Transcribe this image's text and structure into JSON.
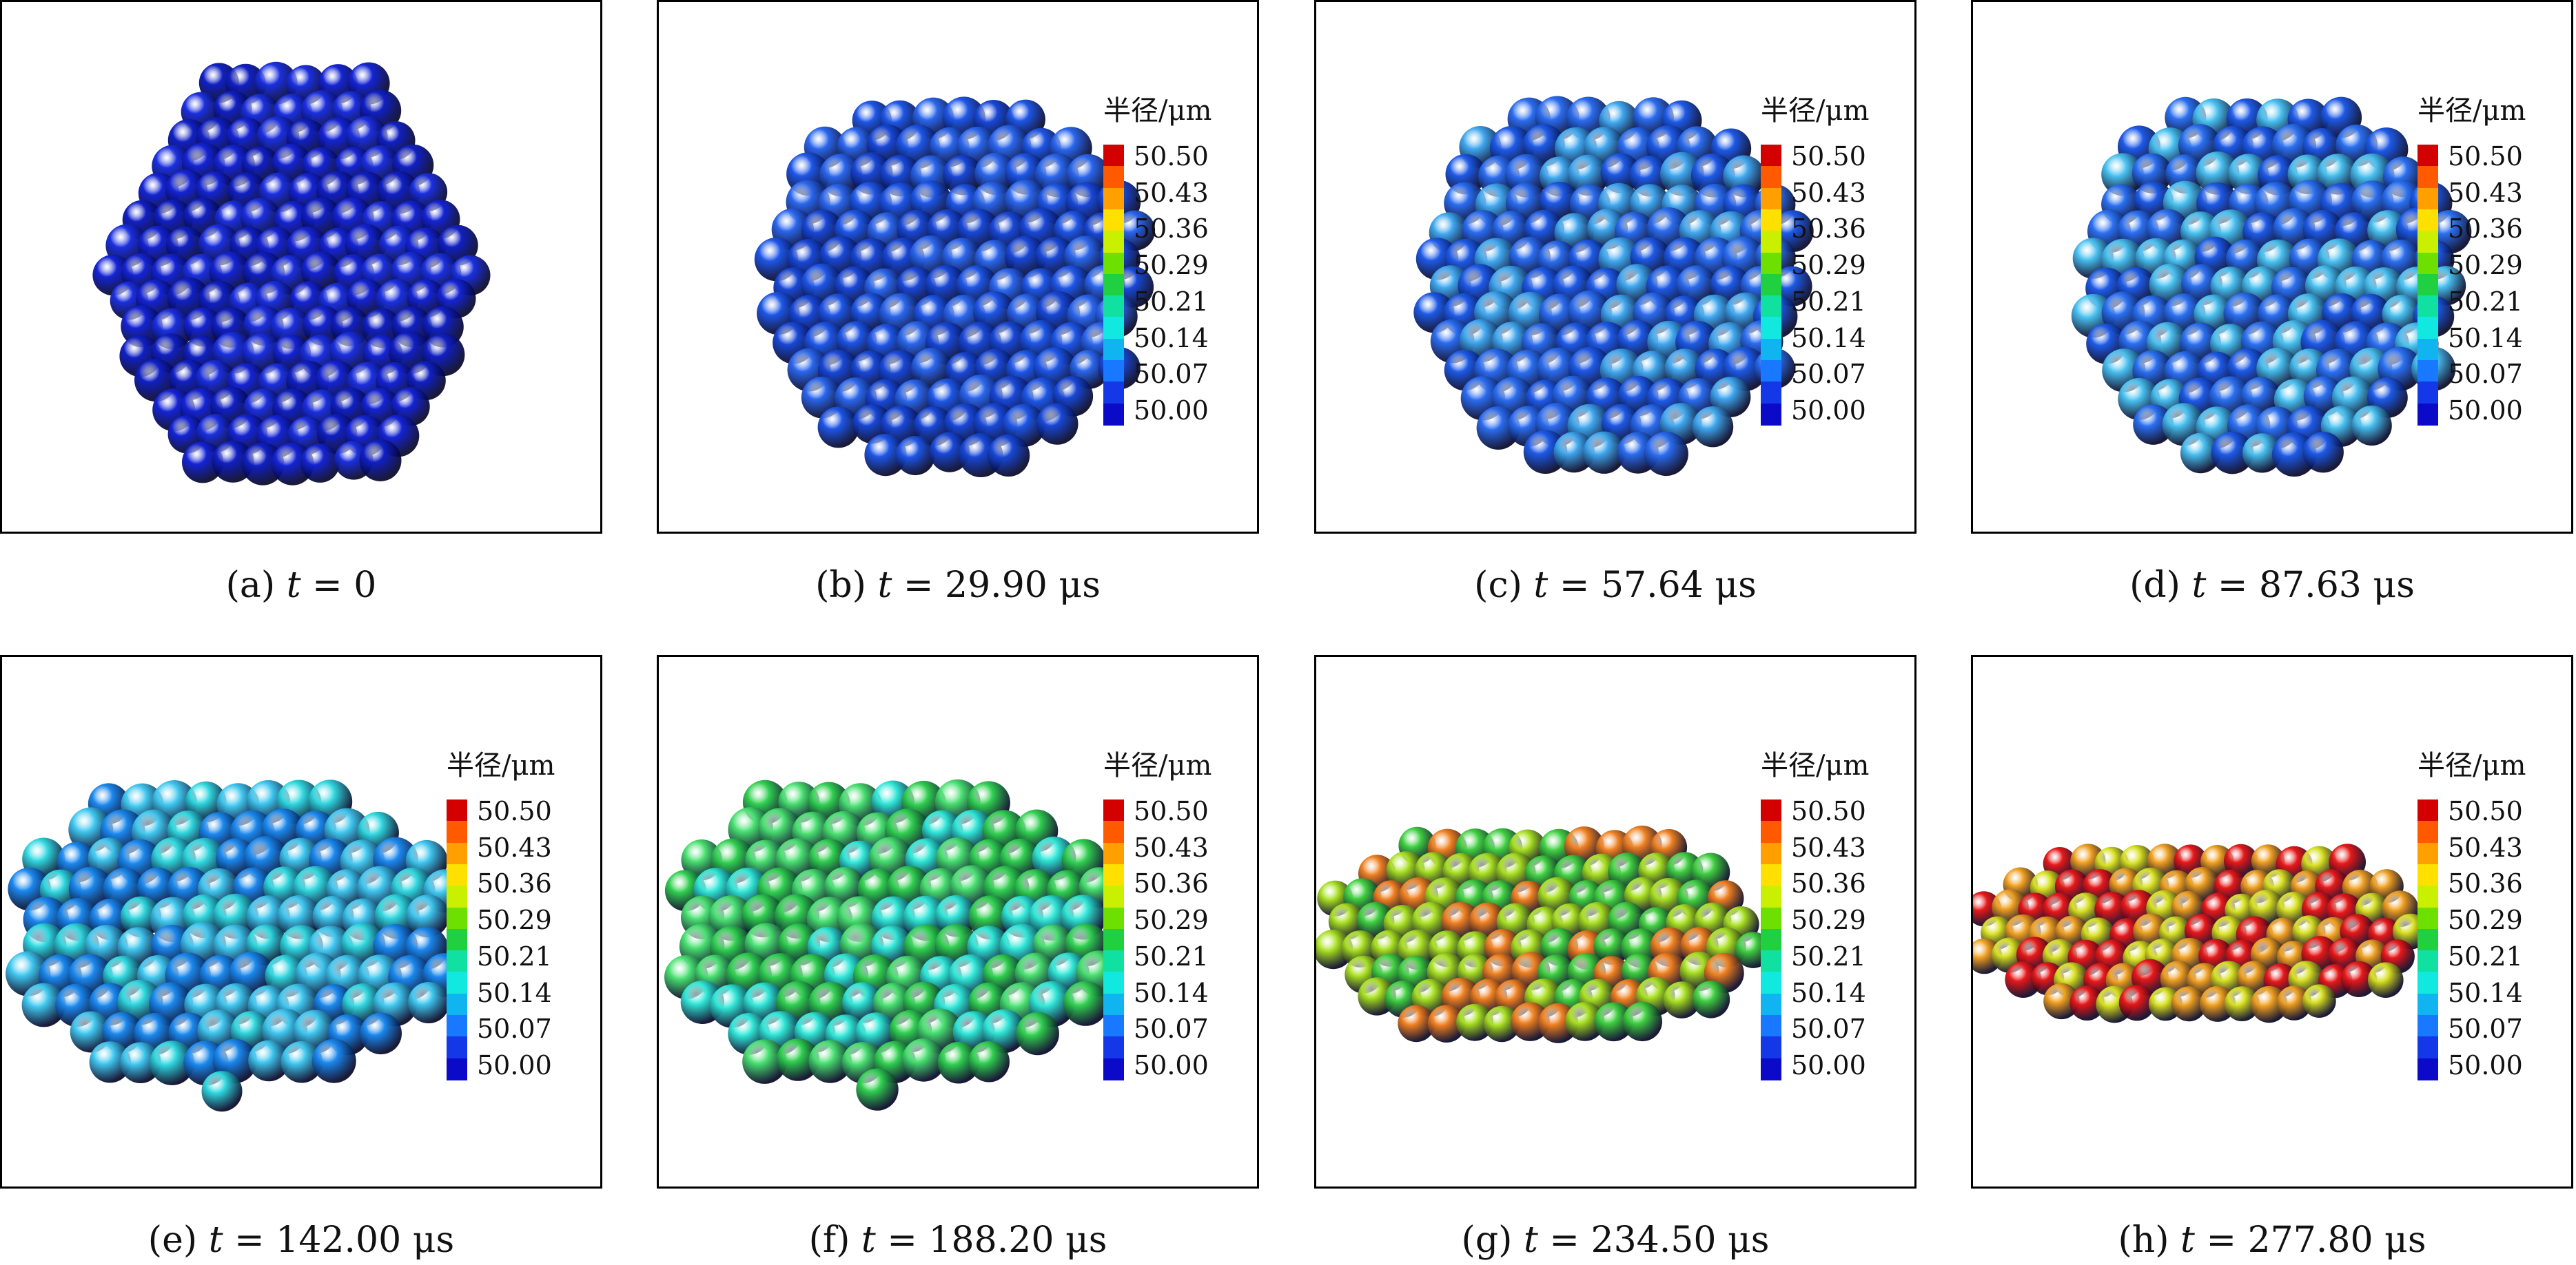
{
  "colorbar": {
    "title": "半径/μm",
    "ticks": [
      "50.50",
      "50.43",
      "50.36",
      "50.29",
      "50.21",
      "50.14",
      "50.07",
      "50.00"
    ],
    "colors": [
      "#d40000",
      "#ff5a00",
      "#ffa000",
      "#ffe000",
      "#c8f000",
      "#6ee000",
      "#20d040",
      "#10e0a0",
      "#10e8e0",
      "#10b4f0",
      "#1878ff",
      "#1438e8",
      "#0a0ac8"
    ]
  },
  "panels": [
    {
      "label": "(a)",
      "var": "t",
      "eq": "=",
      "value": "0",
      "unit": "",
      "show_colorbar": false,
      "cluster": {
        "shape": "hex",
        "colors": [
          "#1424d6",
          "#1a2fe0",
          "#1020c4"
        ]
      }
    },
    {
      "label": "(b)",
      "var": "t",
      "eq": "=",
      "value": "29.90",
      "unit": "μs",
      "show_colorbar": true,
      "cluster": {
        "shape": "round",
        "colors": [
          "#1d56e8",
          "#2a66ee",
          "#1848d8"
        ]
      }
    },
    {
      "label": "(c)",
      "var": "t",
      "eq": "=",
      "value": "57.64",
      "unit": "μs",
      "show_colorbar": true,
      "cluster": {
        "shape": "round",
        "colors": [
          "#1d5ae8",
          "#2a6cf0",
          "#40a8f0"
        ]
      }
    },
    {
      "label": "(d)",
      "var": "t",
      "eq": "=",
      "value": "87.63",
      "unit": "μs",
      "show_colorbar": true,
      "cluster": {
        "shape": "round",
        "colors": [
          "#1d5ae8",
          "#2a70f2",
          "#48c0f0"
        ]
      }
    },
    {
      "label": "(e)",
      "var": "t",
      "eq": "=",
      "value": "142.00",
      "unit": "μs",
      "show_colorbar": true,
      "cluster": {
        "shape": "oval",
        "colors": [
          "#40c8f0",
          "#30d8e0",
          "#1a88ee"
        ]
      }
    },
    {
      "label": "(f)",
      "var": "t",
      "eq": "=",
      "value": "188.20",
      "unit": "μs",
      "show_colorbar": true,
      "cluster": {
        "shape": "oval",
        "colors": [
          "#30d050",
          "#48e070",
          "#30e8d8"
        ]
      }
    },
    {
      "label": "(g)",
      "var": "t",
      "eq": "=",
      "value": "234.50",
      "unit": "μs",
      "show_colorbar": true,
      "cluster": {
        "shape": "flat",
        "colors": [
          "#40d040",
          "#a8e020",
          "#f08020"
        ]
      }
    },
    {
      "label": "(h)",
      "var": "t",
      "eq": "=",
      "value": "277.80",
      "unit": "μs",
      "show_colorbar": true,
      "cluster": {
        "shape": "disc",
        "colors": [
          "#f0a020",
          "#e81818",
          "#d8e020"
        ]
      }
    }
  ]
}
